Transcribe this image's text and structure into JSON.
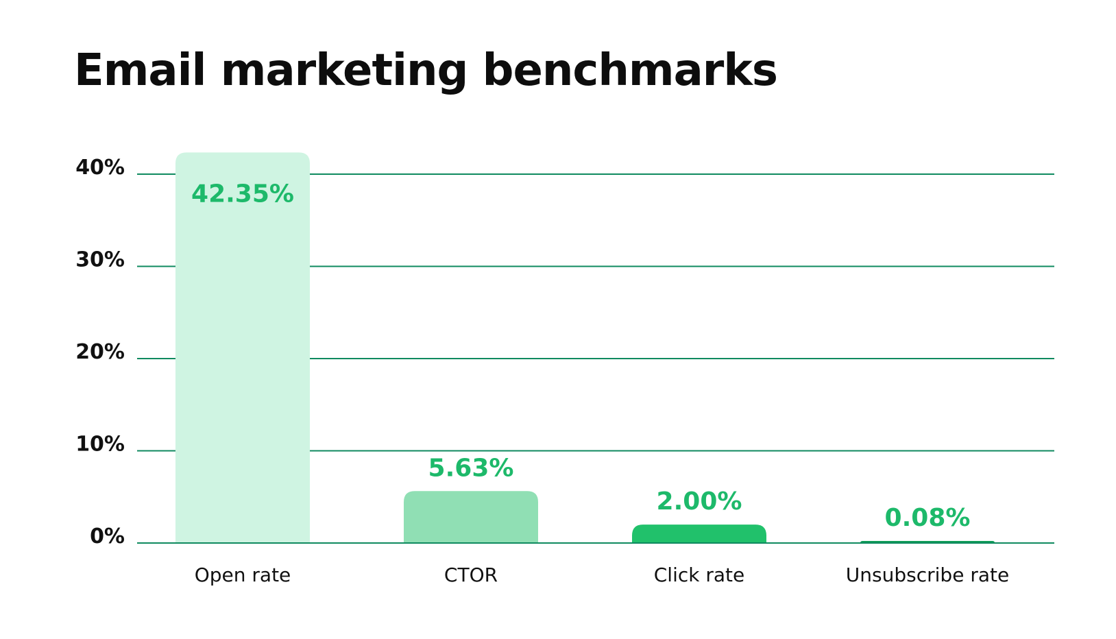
{
  "chart_data": {
    "type": "bar",
    "title": "Email marketing benchmarks",
    "categories": [
      "Open rate",
      "CTOR",
      "Click rate",
      "Unsubscribe rate"
    ],
    "values": [
      42.35,
      5.63,
      2.0,
      0.08
    ],
    "value_labels": [
      "42.35%",
      "5.63%",
      "2.00%",
      "0.08%"
    ],
    "bar_colors": [
      "#cff4e2",
      "#90dfb4",
      "#21c16b",
      "#0f9d58"
    ],
    "value_label_color": "#1db96a",
    "gridline_color": "#0f8a5f",
    "yticks": [
      0,
      10,
      20,
      30,
      40
    ],
    "ytick_labels": [
      "0%",
      "10%",
      "20%",
      "30%",
      "40%"
    ],
    "ylim": [
      0,
      40
    ],
    "xlabel": "",
    "ylabel": "",
    "grid": true,
    "legend": "none"
  }
}
